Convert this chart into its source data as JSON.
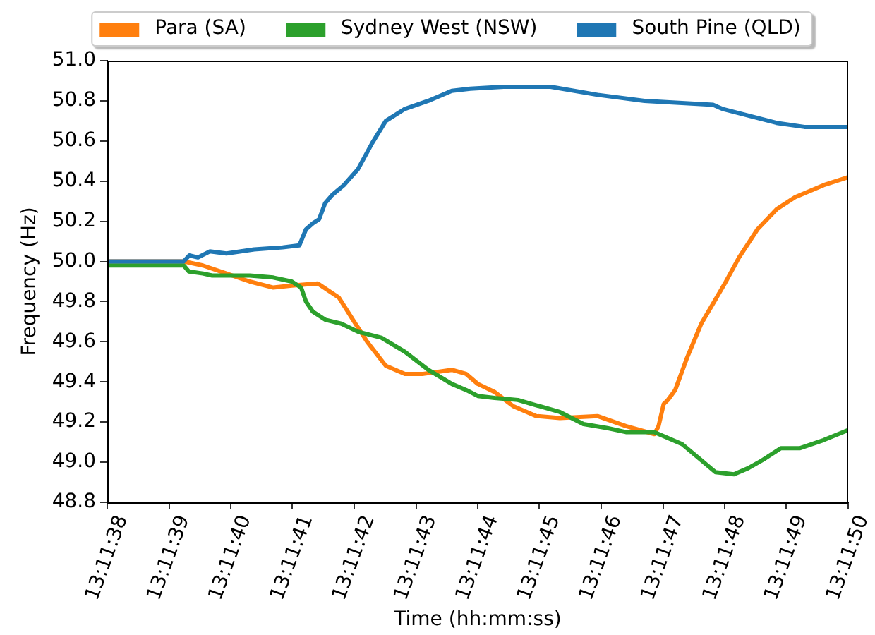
{
  "chart_data": {
    "type": "line",
    "xlabel": "Time (hh:mm:ss)",
    "ylabel": "Frequency (Hz)",
    "legend": "top",
    "xlim": [
      13.193889,
      13.197222
    ],
    "xticks": [
      {
        "value": 13.193889,
        "label": "13:11:38"
      },
      {
        "value": 13.194167,
        "label": "13:11:39"
      },
      {
        "value": 13.194444,
        "label": "13:11:40"
      },
      {
        "value": 13.194722,
        "label": "13:11:41"
      },
      {
        "value": 13.195,
        "label": "13:11:42"
      },
      {
        "value": 13.195278,
        "label": "13:11:43"
      },
      {
        "value": 13.195556,
        "label": "13:11:44"
      },
      {
        "value": 13.195833,
        "label": "13:11:45"
      },
      {
        "value": 13.196111,
        "label": "13:11:46"
      },
      {
        "value": 13.196389,
        "label": "13:11:47"
      },
      {
        "value": 13.196667,
        "label": "13:11:48"
      },
      {
        "value": 13.196944,
        "label": "13:11:49"
      },
      {
        "value": 13.197222,
        "label": "13:11:50"
      }
    ],
    "ylim": [
      48.8,
      51.0
    ],
    "yticks": [
      {
        "value": 48.8,
        "label": "48.8"
      },
      {
        "value": 49,
        "label": "49.0"
      },
      49.2,
      49.4,
      49.6,
      49.8,
      {
        "value": 50,
        "label": "50.0"
      },
      50.2,
      50.4,
      50.6,
      50.8,
      {
        "value": 51,
        "label": "51.0"
      }
    ],
    "series": [
      {
        "name": "Para (SA)",
        "color": "#ff7f0e",
        "x": [
          13.193889,
          13.194233,
          13.194319,
          13.194425,
          13.19453,
          13.194636,
          13.194719,
          13.194836,
          13.194931,
          13.194994,
          13.195058,
          13.195142,
          13.195228,
          13.195311,
          13.195439,
          13.195503,
          13.195556,
          13.195631,
          13.195714,
          13.195819,
          13.195925,
          13.196094,
          13.196222,
          13.19635,
          13.196369,
          13.196392,
          13.196411,
          13.196444,
          13.196497,
          13.196561,
          13.196667,
          13.196731,
          13.196814,
          13.1969,
          13.196983,
          13.197111,
          13.197222
        ],
        "values": [
          50.0,
          50.0,
          49.98,
          49.94,
          49.9,
          49.87,
          49.88,
          49.89,
          49.82,
          49.71,
          49.6,
          49.48,
          49.44,
          49.44,
          49.46,
          49.44,
          49.39,
          49.35,
          49.28,
          49.23,
          49.22,
          49.23,
          49.18,
          49.14,
          49.18,
          49.29,
          49.31,
          49.36,
          49.52,
          49.69,
          49.89,
          50.02,
          50.16,
          50.26,
          50.32,
          50.38,
          50.42
        ]
      },
      {
        "name": "Sydney West (NSW)",
        "color": "#2ca02c",
        "x": [
          13.193889,
          13.194233,
          13.194256,
          13.194319,
          13.194361,
          13.19453,
          13.194636,
          13.194719,
          13.194761,
          13.194783,
          13.194814,
          13.194869,
          13.194942,
          13.195017,
          13.195122,
          13.195228,
          13.195333,
          13.195439,
          13.195503,
          13.195556,
          13.195631,
          13.195736,
          13.195925,
          13.196031,
          13.196139,
          13.196222,
          13.19635,
          13.196475,
          13.196561,
          13.196625,
          13.196708,
          13.196772,
          13.196836,
          13.196919,
          13.197006,
          13.197111,
          13.197222
        ],
        "values": [
          49.98,
          49.98,
          49.95,
          49.94,
          49.93,
          49.93,
          49.92,
          49.9,
          49.87,
          49.8,
          49.75,
          49.71,
          49.69,
          49.65,
          49.62,
          49.55,
          49.46,
          49.39,
          49.36,
          49.33,
          49.32,
          49.31,
          49.25,
          49.19,
          49.17,
          49.15,
          49.15,
          49.09,
          49.01,
          48.95,
          48.94,
          48.97,
          49.01,
          49.07,
          49.07,
          49.11,
          49.16
        ]
      },
      {
        "name": "South Pine (QLD)",
        "color": "#1f77b4",
        "x": [
          13.193889,
          13.194233,
          13.194258,
          13.194297,
          13.19435,
          13.194425,
          13.19455,
          13.194678,
          13.194753,
          13.194783,
          13.194814,
          13.194842,
          13.194869,
          13.1949,
          13.194953,
          13.195017,
          13.195081,
          13.195142,
          13.195228,
          13.195333,
          13.195439,
          13.195522,
          13.195672,
          13.195883,
          13.196094,
          13.196306,
          13.196614,
          13.196656,
          13.1969,
          13.197025,
          13.197222
        ],
        "values": [
          50.0,
          50.0,
          50.03,
          50.02,
          50.05,
          50.04,
          50.06,
          50.07,
          50.08,
          50.16,
          50.19,
          50.21,
          50.29,
          50.33,
          50.38,
          50.46,
          50.59,
          50.7,
          50.76,
          50.8,
          50.85,
          50.86,
          50.87,
          50.87,
          50.83,
          50.8,
          50.78,
          50.76,
          50.69,
          50.67,
          50.67
        ]
      }
    ]
  }
}
